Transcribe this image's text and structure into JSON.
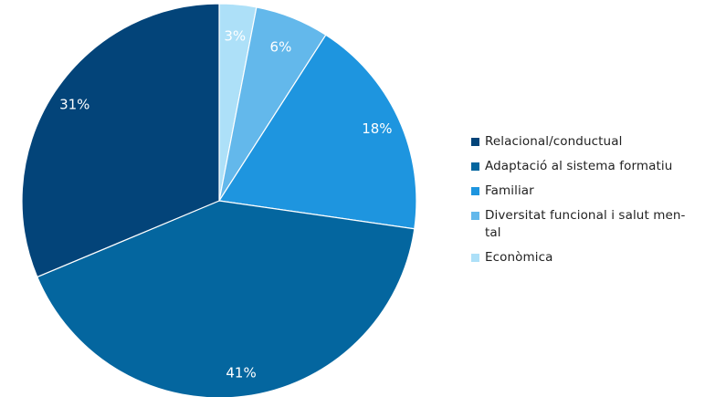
{
  "chart_data": {
    "type": "pie",
    "title": "",
    "legend_position": "right",
    "start_angle_deg": 0,
    "direction": "clockwise",
    "slices": [
      {
        "label": "Econòmica",
        "value": 3,
        "display": "3%",
        "color": "#ade0f8",
        "label_color": "#ffffff"
      },
      {
        "label": "Diversitat funcional i salut mental",
        "value": 6,
        "display": "6%",
        "color": "#63b8eb",
        "label_color": "#ffffff"
      },
      {
        "label": "Familiar",
        "value": 18,
        "display": "18%",
        "color": "#1e95df",
        "label_color": "#ffffff"
      },
      {
        "label": "Adaptació al sistema formatiu",
        "value": 41,
        "display": "41%",
        "color": "#04669f",
        "label_color": "#ffffff"
      },
      {
        "label": "Relacional/conductual",
        "value": 31,
        "display": "31%",
        "color": "#034479",
        "label_color": "#ffffff"
      }
    ],
    "legend": [
      {
        "label": "Relacional/conductual",
        "color": "#034479"
      },
      {
        "label": "Adaptació al sistema formatiu",
        "color": "#04669f"
      },
      {
        "label": "Familiar",
        "color": "#1e95df"
      },
      {
        "label": "Diversitat funcional i salut men-tal",
        "color": "#63b8eb"
      },
      {
        "label": "Econòmica",
        "color": "#ade0f8"
      }
    ]
  }
}
